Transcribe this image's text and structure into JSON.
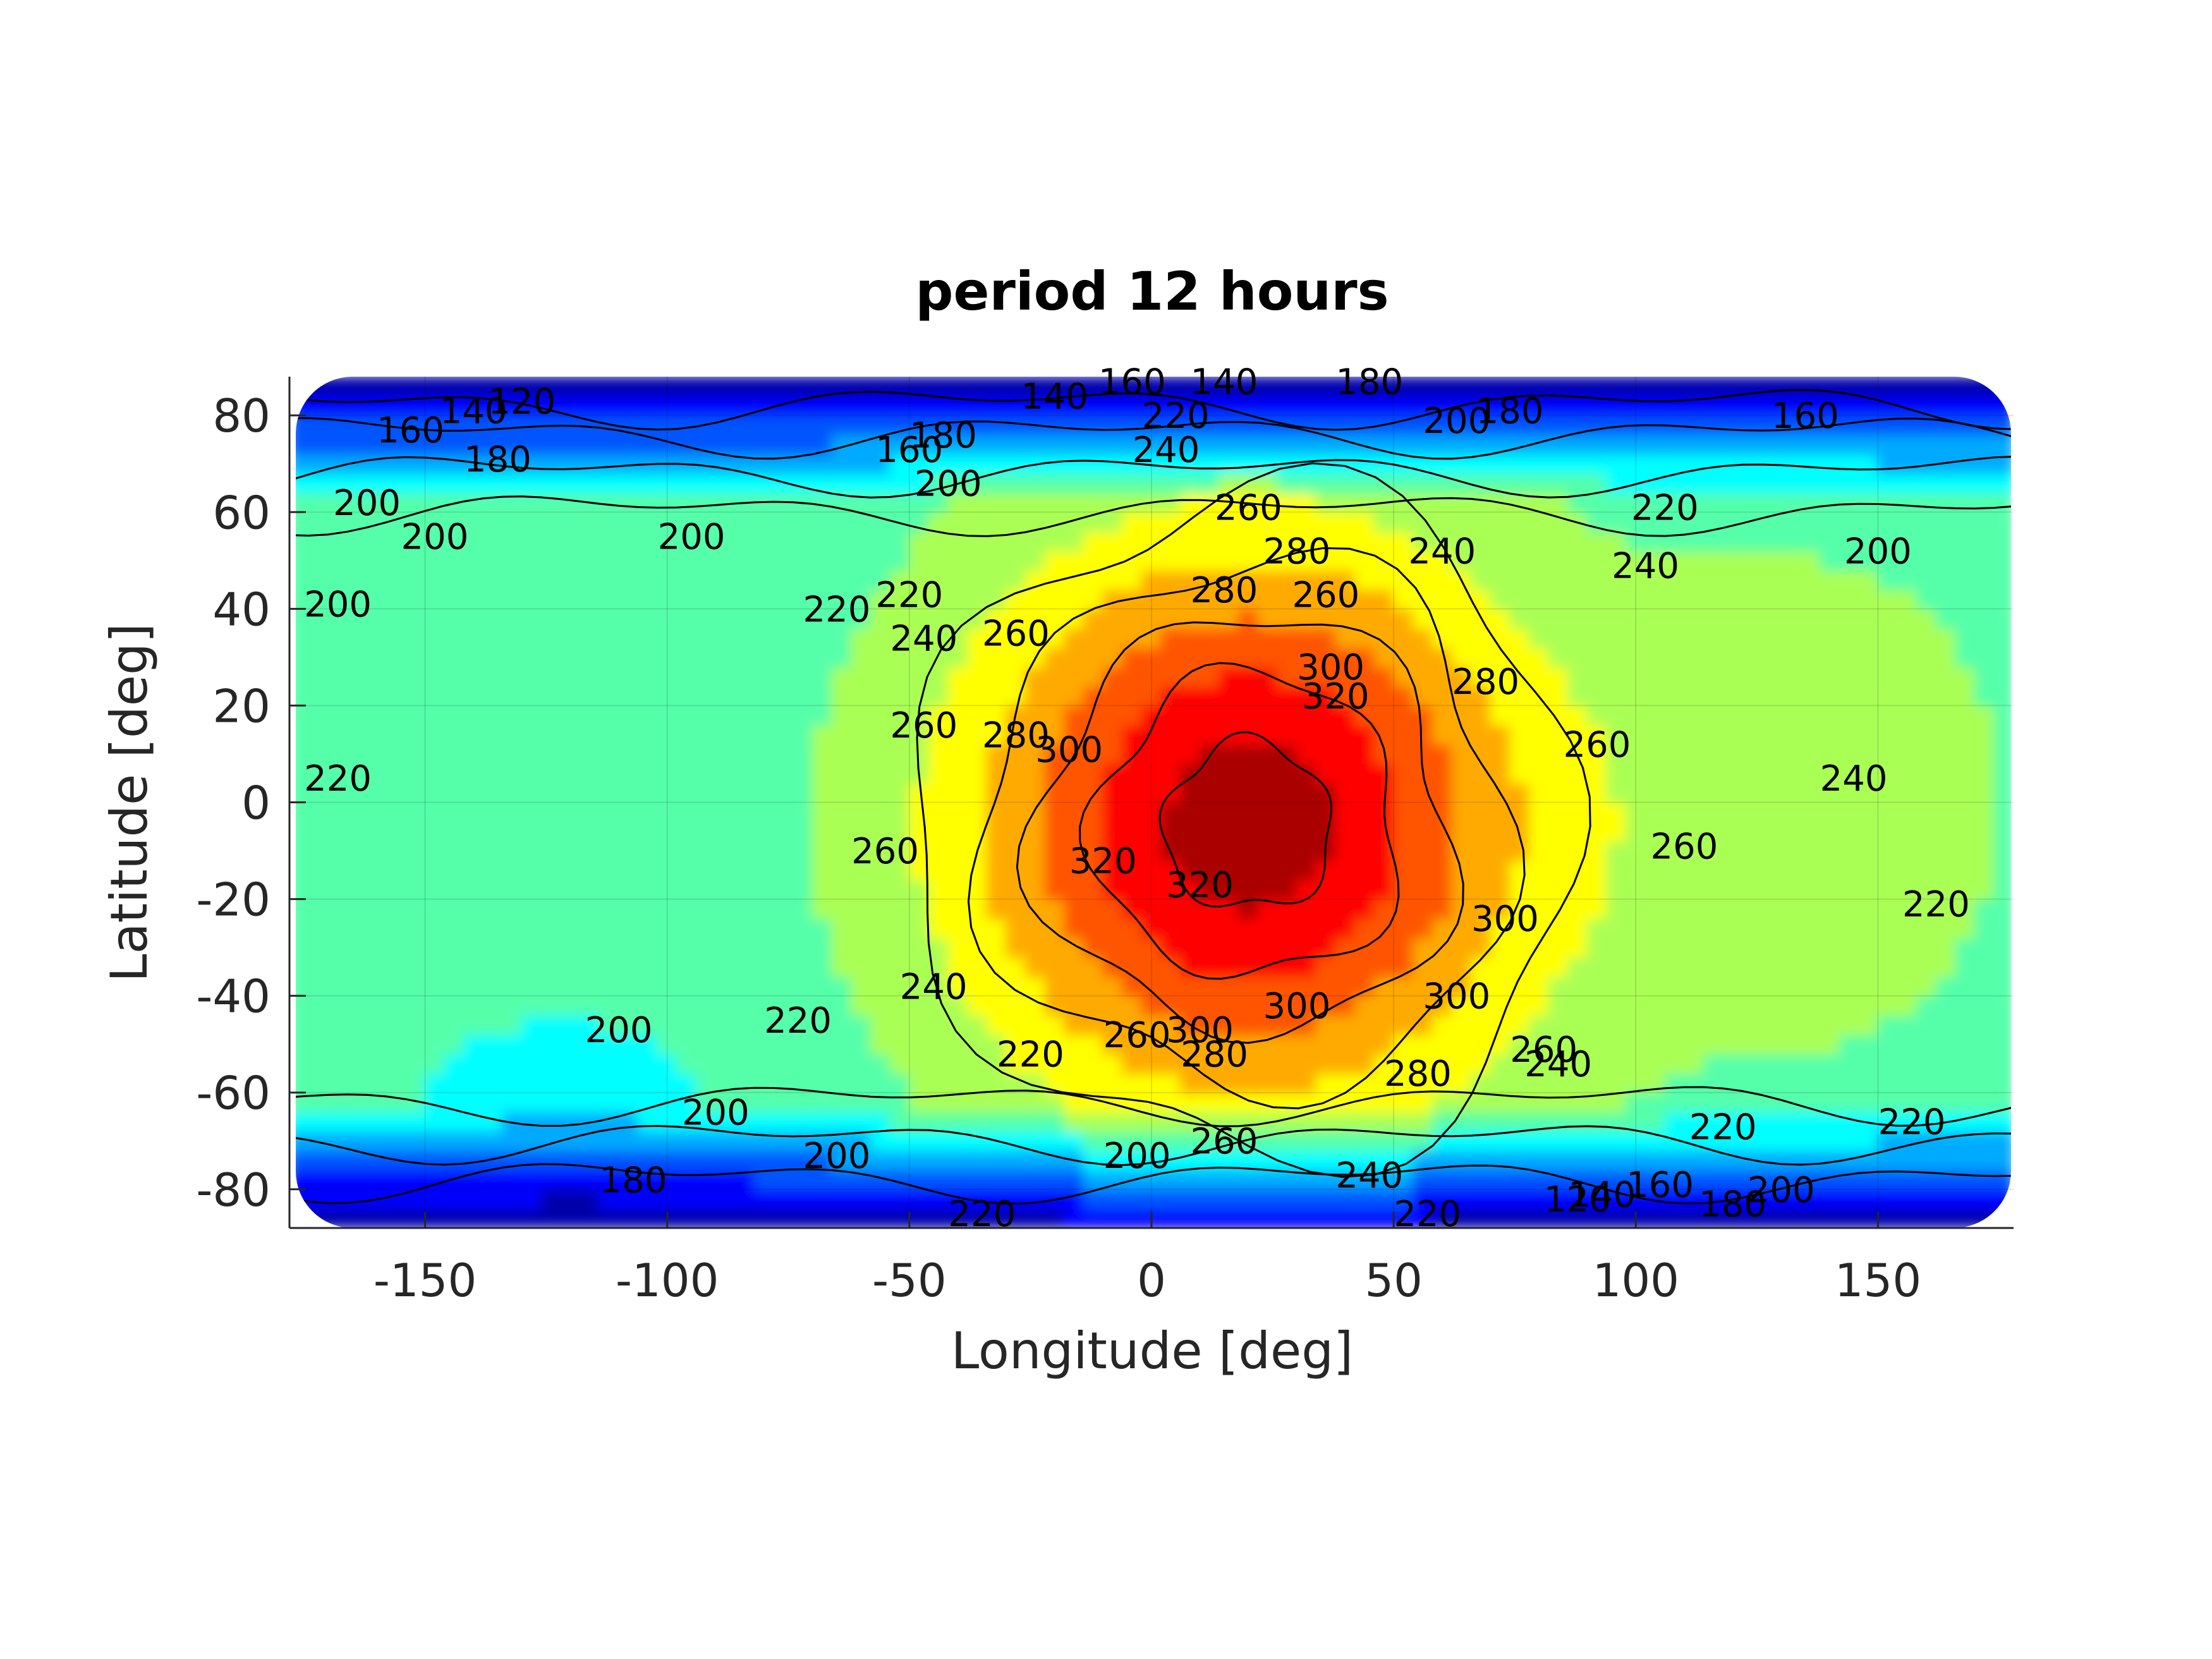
{
  "chart_data": {
    "type": "heatmap",
    "subtype": "filled-contour",
    "title": "period 12 hours",
    "xlabel": "Longitude [deg]",
    "ylabel": "Latitude [deg]",
    "xlim": [
      -178,
      178
    ],
    "ylim": [
      -88,
      88
    ],
    "xticks": [
      -150,
      -100,
      -50,
      0,
      50,
      100,
      150
    ],
    "xtick_labels": [
      "-150",
      "-100",
      "-50",
      "0",
      "50",
      "100",
      "150"
    ],
    "yticks": [
      80,
      60,
      40,
      20,
      0,
      -20,
      -40,
      -60,
      -80
    ],
    "ytick_labels": [
      "80",
      "60",
      "40",
      "20",
      "0",
      "-20",
      "-40",
      "-60",
      "-80"
    ],
    "grid": true,
    "colormap": "jet",
    "color_range": [
      100,
      340
    ],
    "contour_levels": [
      120,
      140,
      160,
      180,
      200,
      220,
      240,
      260,
      280,
      300,
      320
    ],
    "hotspot": {
      "lon": 20,
      "lat": -5,
      "value": 330
    },
    "contour_labels": [
      {
        "text": "120",
        "lon": -130,
        "lat": 83
      },
      {
        "text": "140",
        "lon": -140,
        "lat": 81
      },
      {
        "text": "160",
        "lon": -153,
        "lat": 77
      },
      {
        "text": "180",
        "lon": -135,
        "lat": 71
      },
      {
        "text": "200",
        "lon": -162,
        "lat": 62
      },
      {
        "text": "200",
        "lon": -148,
        "lat": 55
      },
      {
        "text": "200",
        "lon": -95,
        "lat": 55
      },
      {
        "text": "200",
        "lon": -168,
        "lat": 41
      },
      {
        "text": "220",
        "lon": -168,
        "lat": 5
      },
      {
        "text": "160",
        "lon": -50,
        "lat": 73
      },
      {
        "text": "180",
        "lon": -43,
        "lat": 76
      },
      {
        "text": "200",
        "lon": -42,
        "lat": 66
      },
      {
        "text": "140",
        "lon": -20,
        "lat": 84
      },
      {
        "text": "160",
        "lon": -4,
        "lat": 87
      },
      {
        "text": "140",
        "lon": 15,
        "lat": 87
      },
      {
        "text": "220",
        "lon": 5,
        "lat": 80
      },
      {
        "text": "240",
        "lon": 3,
        "lat": 73
      },
      {
        "text": "180",
        "lon": 45,
        "lat": 87
      },
      {
        "text": "200",
        "lon": 63,
        "lat": 79
      },
      {
        "text": "180",
        "lon": 74,
        "lat": 81
      },
      {
        "text": "160",
        "lon": 135,
        "lat": 80
      },
      {
        "text": "220",
        "lon": -65,
        "lat": 40
      },
      {
        "text": "220",
        "lon": -50,
        "lat": 43
      },
      {
        "text": "240",
        "lon": -47,
        "lat": 34
      },
      {
        "text": "260",
        "lon": -28,
        "lat": 35
      },
      {
        "text": "260",
        "lon": -47,
        "lat": 16
      },
      {
        "text": "280",
        "lon": -28,
        "lat": 14
      },
      {
        "text": "300",
        "lon": -17,
        "lat": 11
      },
      {
        "text": "260",
        "lon": 20,
        "lat": 61
      },
      {
        "text": "280",
        "lon": 30,
        "lat": 52
      },
      {
        "text": "280",
        "lon": 15,
        "lat": 44
      },
      {
        "text": "260",
        "lon": 36,
        "lat": 43
      },
      {
        "text": "300",
        "lon": 37,
        "lat": 28
      },
      {
        "text": "320",
        "lon": 38,
        "lat": 22
      },
      {
        "text": "240",
        "lon": 60,
        "lat": 52
      },
      {
        "text": "280",
        "lon": 69,
        "lat": 25
      },
      {
        "text": "220",
        "lon": 106,
        "lat": 61
      },
      {
        "text": "240",
        "lon": 102,
        "lat": 49
      },
      {
        "text": "200",
        "lon": 150,
        "lat": 52
      },
      {
        "text": "260",
        "lon": 92,
        "lat": 12
      },
      {
        "text": "240",
        "lon": 145,
        "lat": 5
      },
      {
        "text": "260",
        "lon": 110,
        "lat": -9
      },
      {
        "text": "220",
        "lon": 162,
        "lat": -21
      },
      {
        "text": "260",
        "lon": -55,
        "lat": -10
      },
      {
        "text": "320",
        "lon": -10,
        "lat": -12
      },
      {
        "text": "320",
        "lon": 10,
        "lat": -17
      },
      {
        "text": "300",
        "lon": 73,
        "lat": -24
      },
      {
        "text": "240",
        "lon": -45,
        "lat": -38
      },
      {
        "text": "220",
        "lon": -73,
        "lat": -45
      },
      {
        "text": "200",
        "lon": -110,
        "lat": -47
      },
      {
        "text": "300",
        "lon": 30,
        "lat": -42
      },
      {
        "text": "300",
        "lon": 63,
        "lat": -40
      },
      {
        "text": "300",
        "lon": 10,
        "lat": -47
      },
      {
        "text": "260",
        "lon": -3,
        "lat": -48
      },
      {
        "text": "280",
        "lon": 13,
        "lat": -52
      },
      {
        "text": "280",
        "lon": 55,
        "lat": -56
      },
      {
        "text": "260",
        "lon": 81,
        "lat": -51
      },
      {
        "text": "240",
        "lon": 84,
        "lat": -54
      },
      {
        "text": "220",
        "lon": -25,
        "lat": -52
      },
      {
        "text": "200",
        "lon": -90,
        "lat": -64
      },
      {
        "text": "200",
        "lon": -65,
        "lat": -73
      },
      {
        "text": "180",
        "lon": -107,
        "lat": -78
      },
      {
        "text": "200",
        "lon": -3,
        "lat": -73
      },
      {
        "text": "260",
        "lon": 15,
        "lat": -70
      },
      {
        "text": "240",
        "lon": 45,
        "lat": -77
      },
      {
        "text": "220",
        "lon": 57,
        "lat": -85
      },
      {
        "text": "220",
        "lon": -35,
        "lat": -85
      },
      {
        "text": "220",
        "lon": 118,
        "lat": -67
      },
      {
        "text": "220",
        "lon": 157,
        "lat": -66
      },
      {
        "text": "200",
        "lon": 130,
        "lat": -80
      },
      {
        "text": "180",
        "lon": 120,
        "lat": -83
      },
      {
        "text": "160",
        "lon": 105,
        "lat": -79
      },
      {
        "text": "140",
        "lon": 93,
        "lat": -81
      },
      {
        "text": "120",
        "lon": 88,
        "lat": -82
      }
    ]
  }
}
